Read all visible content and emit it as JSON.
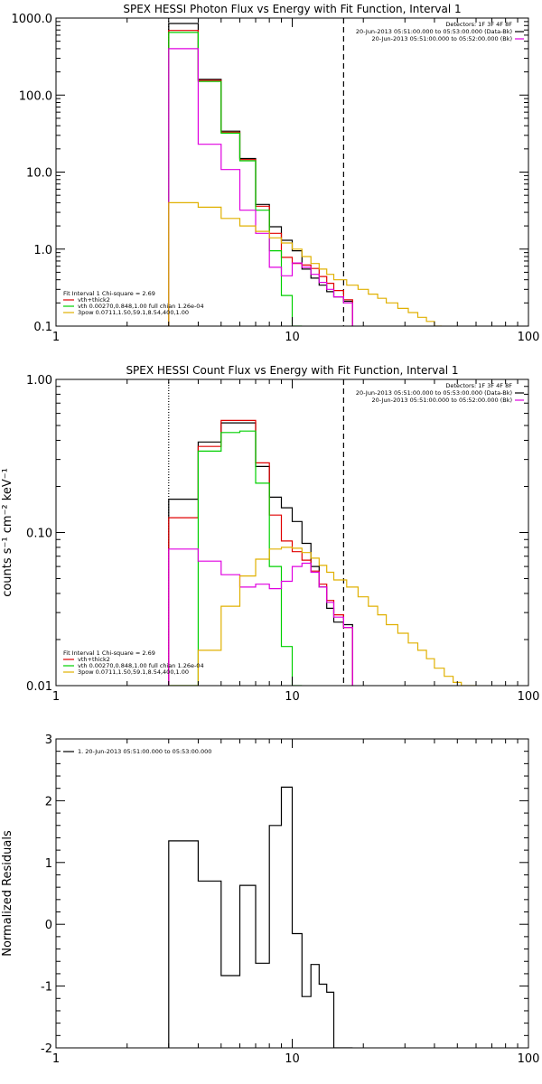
{
  "chart_data": [
    {
      "type": "line",
      "title": "SPEX HESSI Photon Flux vs Energy with Fit Function, Interval 1",
      "ylabel": "",
      "xlim": [
        1,
        100
      ],
      "xscale": "log",
      "ylim": [
        0.1,
        1000
      ],
      "yscale": "log",
      "xticks": [
        {
          "v": 1,
          "label": "1"
        },
        {
          "v": 10,
          "label": "10"
        },
        {
          "v": 100,
          "label": "100"
        }
      ],
      "yticks": [
        {
          "v": 1000,
          "label": "1000.0"
        },
        {
          "v": 100,
          "label": "100.0"
        },
        {
          "v": 10,
          "label": "10.0"
        },
        {
          "v": 1,
          "label": "1.0"
        },
        {
          "v": 0.1,
          "label": "0.1"
        }
      ],
      "vlines": [
        {
          "x": 3.0,
          "style": "dotted",
          "color": "#000000"
        },
        {
          "x": 16.5,
          "style": "dashed",
          "color": "#000000"
        }
      ],
      "info_lines": [
        "Detectors: 1F 3F 4F 8F",
        "20-Jun-2013 05:51:00.000 to 05:53:00.000 (Data-Bk)",
        "20-Jun-2013 05:51:00.000 to 05:52:00.000 (Bk)"
      ],
      "info_series": [
        {
          "color": "#000000"
        },
        {
          "color": "#e000e0"
        }
      ],
      "legend_items": [
        {
          "text": "Fit Interval 1    Chi-square = 2.69",
          "color": null
        },
        {
          "text": "vth+thick2",
          "color": "#e00000"
        },
        {
          "text": "vth 0.00270,0.848,1.00   full chian 1.26e-04",
          "color": "#00d000"
        },
        {
          "text": "3pow 0.0711,1.50,59.1,8.54,400,1.00",
          "color": "#e0b000"
        }
      ],
      "series": [
        {
          "name": "Data-Bk",
          "color": "#000000",
          "x": [
            3,
            4,
            5,
            6,
            7,
            8,
            9,
            10,
            11,
            12,
            13,
            14,
            15,
            16.5
          ],
          "y": [
            850,
            160,
            34,
            15,
            3.8,
            1.95,
            1.3,
            0.95,
            0.55,
            0.42,
            0.34,
            0.28,
            0.24,
            0.21
          ]
        },
        {
          "name": "vth+thick2",
          "color": "#e00000",
          "x": [
            3,
            4,
            5,
            6,
            7,
            8,
            9,
            10,
            11,
            12,
            13,
            14,
            15,
            16.5
          ],
          "y": [
            690,
            155,
            33,
            14.5,
            3.6,
            1.6,
            0.78,
            0.65,
            0.62,
            0.56,
            0.44,
            0.36,
            0.29,
            0.22
          ]
        },
        {
          "name": "vth",
          "color": "#00d000",
          "x": [
            3,
            4,
            5,
            6,
            7,
            8,
            9,
            10
          ],
          "y": [
            650,
            150,
            32,
            14,
            3.2,
            0.95,
            0.25,
            0.1
          ]
        },
        {
          "name": "thick2",
          "color": "#e000e0",
          "x": [
            3,
            4,
            5,
            6,
            7,
            8,
            9,
            10,
            11,
            12,
            13,
            14,
            15,
            16.5
          ],
          "y": [
            400,
            23,
            10.8,
            3.2,
            1.6,
            0.58,
            0.45,
            0.66,
            0.58,
            0.47,
            0.37,
            0.3,
            0.24,
            0.2
          ]
        },
        {
          "name": "3pow",
          "color": "#e0b000",
          "x": [
            3,
            4,
            5,
            6,
            7,
            8,
            9,
            10,
            11,
            12,
            13,
            14,
            15,
            17,
            19,
            21,
            23,
            25,
            28,
            31,
            34,
            37,
            40
          ],
          "y": [
            4.0,
            3.5,
            2.5,
            2.0,
            1.7,
            1.4,
            1.2,
            1.0,
            0.8,
            0.65,
            0.55,
            0.47,
            0.4,
            0.34,
            0.3,
            0.26,
            0.23,
            0.2,
            0.17,
            0.15,
            0.13,
            0.115,
            0.1
          ]
        }
      ]
    },
    {
      "type": "line",
      "title": "SPEX HESSI Count Flux vs Energy with Fit Function, Interval 1",
      "ylabel": "counts s⁻¹ cm⁻² keV⁻¹",
      "xlim": [
        1,
        100
      ],
      "xscale": "log",
      "ylim": [
        0.01,
        1
      ],
      "yscale": "log",
      "xticks": [
        {
          "v": 1,
          "label": "1"
        },
        {
          "v": 10,
          "label": "10"
        },
        {
          "v": 100,
          "label": "100"
        }
      ],
      "yticks": [
        {
          "v": 1,
          "label": "1.00"
        },
        {
          "v": 0.1,
          "label": "0.10"
        },
        {
          "v": 0.01,
          "label": "0.01"
        }
      ],
      "vlines": [
        {
          "x": 3.0,
          "style": "dotted",
          "color": "#000000"
        },
        {
          "x": 16.5,
          "style": "dashed",
          "color": "#000000"
        }
      ],
      "info_lines": [
        "Detectors: 1F 3F 4F 8F",
        "20-Jun-2013 05:51:00.000 to 05:53:00.000 (Data-Bk)",
        "20-Jun-2013 05:51:00.000 to 05:52:00.000 (Bk)"
      ],
      "info_series": [
        {
          "color": "#000000"
        },
        {
          "color": "#e000e0"
        }
      ],
      "legend_items": [
        {
          "text": "Fit Interval 1    Chi-square = 2.69",
          "color": null
        },
        {
          "text": "vth+thick2",
          "color": "#e00000"
        },
        {
          "text": "vth 0.00270,0.848,1.00   full chian 1.26e-04",
          "color": "#00d000"
        },
        {
          "text": "3pow 0.0711,1.50,59.1,8.54,400,1.00",
          "color": "#e0b000"
        }
      ],
      "series": [
        {
          "name": "Data-Bk",
          "color": "#000000",
          "x": [
            3,
            4,
            5,
            6,
            7,
            8,
            9,
            10,
            11,
            12,
            13,
            14,
            15,
            16.5
          ],
          "y": [
            0.165,
            0.39,
            0.52,
            0.52,
            0.27,
            0.17,
            0.145,
            0.118,
            0.085,
            0.06,
            0.044,
            0.032,
            0.026,
            0.025
          ]
        },
        {
          "name": "vth+thick2",
          "color": "#e00000",
          "x": [
            3,
            4,
            5,
            6,
            7,
            8,
            9,
            10,
            11,
            12,
            13,
            14,
            15,
            16.5
          ],
          "y": [
            0.125,
            0.365,
            0.54,
            0.54,
            0.285,
            0.13,
            0.088,
            0.075,
            0.066,
            0.056,
            0.046,
            0.036,
            0.029,
            0.024
          ]
        },
        {
          "name": "vth",
          "color": "#00d000",
          "x": [
            3,
            4,
            5,
            6,
            7,
            8,
            9,
            10
          ],
          "y": [
            0.01,
            0.34,
            0.45,
            0.46,
            0.21,
            0.06,
            0.018,
            0.01
          ]
        },
        {
          "name": "thick2",
          "color": "#e000e0",
          "x": [
            3,
            4,
            5,
            6,
            7,
            8,
            9,
            10,
            11,
            12,
            13,
            14,
            15,
            16.5
          ],
          "y": [
            0.078,
            0.065,
            0.053,
            0.044,
            0.046,
            0.043,
            0.048,
            0.06,
            0.063,
            0.055,
            0.044,
            0.035,
            0.028,
            0.024
          ]
        },
        {
          "name": "3pow",
          "color": "#e0b000",
          "x": [
            3,
            4,
            5,
            6,
            7,
            8,
            9,
            10,
            11,
            12,
            13,
            14,
            15,
            17,
            19,
            21,
            23,
            25,
            28,
            31,
            34,
            37,
            40,
            44,
            48,
            52,
            56
          ],
          "y": [
            0.01,
            0.017,
            0.033,
            0.052,
            0.067,
            0.078,
            0.08,
            0.079,
            0.074,
            0.068,
            0.061,
            0.055,
            0.049,
            0.044,
            0.038,
            0.033,
            0.029,
            0.025,
            0.022,
            0.019,
            0.017,
            0.015,
            0.013,
            0.0115,
            0.0105,
            0.01,
            0.01
          ]
        }
      ]
    },
    {
      "type": "line",
      "title": "",
      "ylabel": "Normalized Residuals",
      "xlim": [
        1,
        100
      ],
      "xscale": "log",
      "ylim": [
        -2,
        3
      ],
      "yscale": "linear",
      "xticks": [
        {
          "v": 1,
          "label": "1"
        },
        {
          "v": 10,
          "label": "10"
        },
        {
          "v": 100,
          "label": "100"
        }
      ],
      "yticks": [
        {
          "v": 3,
          "label": "3"
        },
        {
          "v": 2,
          "label": "2"
        },
        {
          "v": 1,
          "label": "1"
        },
        {
          "v": 0,
          "label": "0"
        },
        {
          "v": -1,
          "label": "-1"
        },
        {
          "v": -2,
          "label": "-2"
        }
      ],
      "vlines": [],
      "info_lines": [],
      "info_series": [],
      "legend_items": [
        {
          "text": "1. 20-Jun-2013 05:51:00.000 to 05:53:00.000",
          "color": "#000000"
        }
      ],
      "series": [
        {
          "name": "Residuals",
          "color": "#000000",
          "x": [
            3,
            4,
            5,
            6,
            7,
            8,
            9,
            10,
            11,
            12,
            13,
            14,
            15,
            16.5
          ],
          "y": [
            1.35,
            0.7,
            -0.83,
            0.63,
            -0.63,
            1.6,
            2.22,
            -0.15,
            -1.17,
            -0.65,
            -0.97,
            -1.1,
            -2,
            -2
          ]
        }
      ]
    }
  ]
}
